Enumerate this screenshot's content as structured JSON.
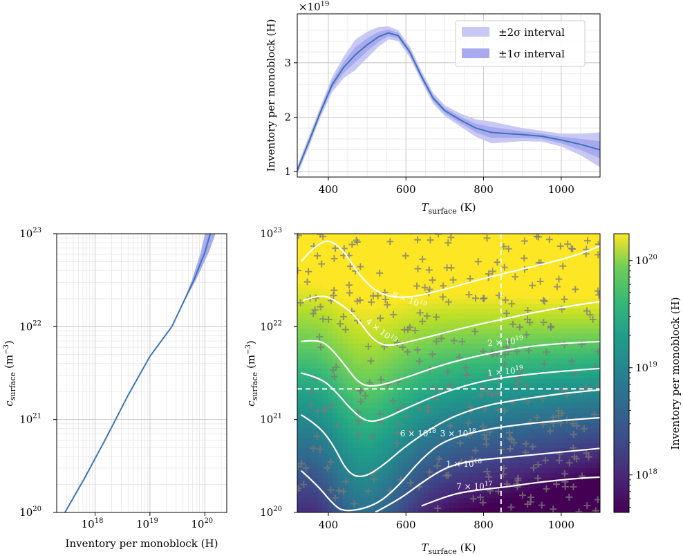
{
  "chart_data": [
    {
      "type": "line",
      "panel": "top",
      "xlabel_main": "T",
      "xlabel_sub": "surface",
      "xlabel_unit": " (K)",
      "ylabel": "Inventory per monoblock (H)",
      "offset_label": "×10",
      "offset_exp": "19",
      "xlim": [
        320,
        1100
      ],
      "ylim": [
        0.9,
        3.9
      ],
      "xticks": [
        400,
        600,
        800,
        1000
      ],
      "yticks": [
        1,
        2,
        3
      ],
      "legend": {
        "placement": "top-right",
        "entries": [
          "±2σ interval",
          "±1σ interval"
        ]
      },
      "grid": true,
      "series": [
        {
          "x": [
            320,
            350,
            380,
            410,
            440,
            470,
            500,
            530,
            555,
            580,
            610,
            640,
            670,
            700,
            740,
            780,
            820,
            860,
            900,
            950,
            1000,
            1050,
            1100
          ],
          "y": [
            1.02,
            1.55,
            2.1,
            2.6,
            2.92,
            3.15,
            3.33,
            3.48,
            3.55,
            3.5,
            3.2,
            2.75,
            2.35,
            2.12,
            1.95,
            1.8,
            1.72,
            1.7,
            1.68,
            1.65,
            1.58,
            1.5,
            1.4
          ],
          "sigma": [
            0.04,
            0.05,
            0.05,
            0.07,
            0.1,
            0.14,
            0.12,
            0.09,
            0.06,
            0.05,
            0.05,
            0.05,
            0.05,
            0.05,
            0.06,
            0.08,
            0.1,
            0.08,
            0.06,
            0.05,
            0.06,
            0.1,
            0.16
          ]
        }
      ]
    },
    {
      "type": "line",
      "panel": "bottom-left",
      "xlabel": "Inventory per monoblock (H)",
      "ylabel_main": "c",
      "ylabel_sub": "surface",
      "ylabel_unit": "(m",
      "ylabel_unit_exp": "−3",
      "xscale": "log",
      "yscale": "log",
      "xlim_log10": [
        17.3,
        20.4
      ],
      "ylim_log10": [
        20,
        23
      ],
      "xticks": [
        {
          "base": "10",
          "exp": "18",
          "v": 18
        },
        {
          "base": "10",
          "exp": "19",
          "v": 19
        },
        {
          "base": "10",
          "exp": "20",
          "v": 20
        }
      ],
      "yticks": [
        {
          "base": "10",
          "exp": "20",
          "v": 20
        },
        {
          "base": "10",
          "exp": "21",
          "v": 21
        },
        {
          "base": "10",
          "exp": "22",
          "v": 22
        },
        {
          "base": "10",
          "exp": "23",
          "v": 23
        }
      ],
      "grid": true,
      "series": [
        {
          "log10_x": [
            17.45,
            17.8,
            18.2,
            18.6,
            19.0,
            19.4,
            19.6,
            19.8,
            20.0,
            20.1,
            20.2
          ],
          "log10_y": [
            20.0,
            20.36,
            20.8,
            21.26,
            21.68,
            22.0,
            22.25,
            22.5,
            22.8,
            23.0,
            23.15
          ]
        }
      ]
    },
    {
      "type": "heatmap",
      "panel": "bottom-right",
      "xlabel_main": "T",
      "xlabel_sub": "surface",
      "xlabel_unit": " (K)",
      "ylabel_main": "c",
      "ylabel_sub": "surface",
      "ylabel_unit": "(m",
      "ylabel_unit_exp": "−3",
      "xlim": [
        320,
        1100
      ],
      "ylim_log10": [
        20,
        23
      ],
      "xticks": [
        400,
        600,
        800,
        1000
      ],
      "yticks": [
        {
          "base": "10",
          "exp": "20",
          "v": 20
        },
        {
          "base": "10",
          "exp": "21",
          "v": 21
        },
        {
          "base": "10",
          "exp": "22",
          "v": 22
        },
        {
          "base": "10",
          "exp": "23",
          "v": 23
        }
      ],
      "colormap": "viridis",
      "colorbar_label": "Inventory per monoblock (H)",
      "colorbar_ticks": [
        {
          "base": "10",
          "exp": "18",
          "v": 18
        },
        {
          "base": "10",
          "exp": "19",
          "v": 19
        },
        {
          "base": "10",
          "exp": "20",
          "v": 20
        }
      ],
      "colorbar_range_log10": [
        17.65,
        20.25
      ],
      "crosshair": {
        "x": 845,
        "log10_y": 21.33
      },
      "contours": [
        {
          "label_main": "8 × 10",
          "label_exp": "19",
          "level_log10": 19.9,
          "lx": 565,
          "ly_log10": 22.35,
          "rot": 20,
          "pts": [
            [
              330,
              22.7
            ],
            [
              380,
              22.95
            ],
            [
              430,
              22.88
            ],
            [
              480,
              22.55
            ],
            [
              530,
              22.35
            ],
            [
              600,
              22.3
            ],
            [
              700,
              22.4
            ],
            [
              800,
              22.52
            ],
            [
              900,
              22.62
            ],
            [
              1000,
              22.72
            ],
            [
              1060,
              22.8
            ],
            [
              1100,
              22.87
            ]
          ]
        },
        {
          "label_main": "4 × 10",
          "label_exp": "19",
          "level_log10": 19.6,
          "lx": 500,
          "ly_log10": 22.07,
          "rot": 38,
          "pts": [
            [
              335,
              22.28
            ],
            [
              380,
              22.35
            ],
            [
              420,
              22.28
            ],
            [
              470,
              22.12
            ],
            [
              510,
              21.88
            ],
            [
              540,
              21.8
            ],
            [
              570,
              21.8
            ],
            [
              650,
              21.88
            ],
            [
              750,
              21.99
            ],
            [
              850,
              22.08
            ],
            [
              950,
              22.17
            ],
            [
              1050,
              22.24
            ],
            [
              1100,
              22.27
            ]
          ]
        },
        {
          "label_main": "2 × 10",
          "label_exp": "19",
          "level_log10": 19.3,
          "lx": 810,
          "ly_log10": 21.82,
          "rot": -5,
          "pts": [
            [
              330,
              21.84
            ],
            [
              370,
              21.86
            ],
            [
              400,
              21.8
            ],
            [
              440,
              21.6
            ],
            [
              480,
              21.38
            ],
            [
              520,
              21.35
            ],
            [
              600,
              21.45
            ],
            [
              700,
              21.6
            ],
            [
              800,
              21.7
            ],
            [
              900,
              21.78
            ],
            [
              1000,
              21.82
            ],
            [
              1100,
              21.84
            ]
          ]
        },
        {
          "label_main": "1 × 10",
          "label_exp": "19",
          "level_log10": 19.0,
          "lx": 810,
          "ly_log10": 21.5,
          "rot": -5,
          "pts": [
            [
              330,
              21.5
            ],
            [
              380,
              21.45
            ],
            [
              420,
              21.3
            ],
            [
              460,
              21.1
            ],
            [
              500,
              20.97
            ],
            [
              540,
              21.0
            ],
            [
              600,
              21.12
            ],
            [
              700,
              21.3
            ],
            [
              800,
              21.42
            ],
            [
              900,
              21.48
            ],
            [
              1000,
              21.52
            ],
            [
              1100,
              21.55
            ]
          ]
        },
        {
          "label_main": "6 × 10",
          "label_exp": "18",
          "level_log10": 18.78,
          "lx": 585,
          "ly_log10": 20.85,
          "rot": 0,
          "pts": [
            [
              330,
              21.05
            ],
            [
              370,
              20.95
            ],
            [
              410,
              20.75
            ],
            [
              450,
              20.42
            ],
            [
              490,
              20.37
            ],
            [
              540,
              20.5
            ],
            [
              600,
              20.72
            ],
            [
              700,
              21.0
            ],
            [
              800,
              21.15
            ],
            [
              900,
              21.22
            ],
            [
              1000,
              21.28
            ],
            [
              1100,
              21.32
            ]
          ]
        },
        {
          "label_main": "3 × 10",
          "label_exp": "18",
          "level_log10": 18.48,
          "lx": 688,
          "ly_log10": 20.85,
          "rot": 0,
          "pts": [
            [
              330,
              20.45
            ],
            [
              370,
              20.3
            ],
            [
              410,
              20.1
            ],
            [
              440,
              20.0
            ],
            [
              520,
              20.07
            ],
            [
              580,
              20.28
            ],
            [
              640,
              20.58
            ],
            [
              700,
              20.78
            ],
            [
              800,
              20.89
            ],
            [
              900,
              20.95
            ],
            [
              1000,
              20.99
            ],
            [
              1100,
              21.02
            ]
          ]
        },
        {
          "label_main": "1 × 10",
          "label_exp": "18",
          "level_log10": 18.0,
          "lx": 703,
          "ly_log10": 20.52,
          "rot": 0,
          "pts": [
            [
              520,
              20.0
            ],
            [
              580,
              20.13
            ],
            [
              640,
              20.32
            ],
            [
              700,
              20.48
            ],
            [
              760,
              20.55
            ],
            [
              850,
              20.59
            ],
            [
              950,
              20.63
            ],
            [
              1050,
              20.67
            ],
            [
              1100,
              20.69
            ]
          ]
        },
        {
          "label_main": "7 × 10",
          "label_exp": "17",
          "level_log10": 17.85,
          "lx": 730,
          "ly_log10": 20.28,
          "rot": 0,
          "pts": [
            [
              640,
              20.07
            ],
            [
              700,
              20.17
            ],
            [
              760,
              20.23
            ],
            [
              850,
              20.27
            ],
            [
              950,
              20.33
            ],
            [
              1050,
              20.37
            ],
            [
              1100,
              20.38
            ]
          ]
        }
      ]
    }
  ]
}
